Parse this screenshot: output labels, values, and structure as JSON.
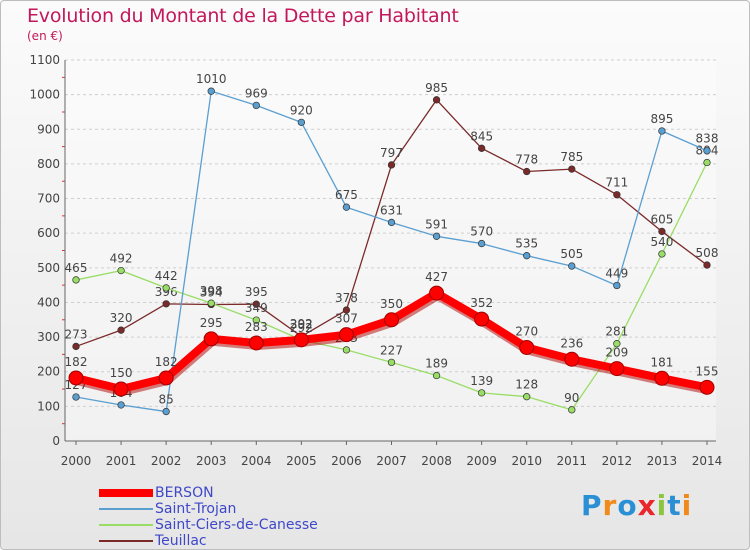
{
  "header": {
    "title": "Evolution du Montant de la Dette par Habitant",
    "unit": "(en €)"
  },
  "logo": {
    "text": "Proxiti",
    "colors": [
      "#2b8fd6",
      "#f08a1c",
      "#2b8fd6",
      "#e8262b",
      "#8cc63f",
      "#2b8fd6",
      "#f08a1c"
    ]
  },
  "chart_data": {
    "type": "line",
    "title": "Evolution du Montant de la Dette par Habitant",
    "ylabel": "(en €)",
    "xlabel": "",
    "x": [
      "2000",
      "2001",
      "2002",
      "2003",
      "2004",
      "2005",
      "2006",
      "2007",
      "2008",
      "2009",
      "2010",
      "2011",
      "2012",
      "2013",
      "2014"
    ],
    "ylim": [
      0,
      1100
    ],
    "yticks": [
      0,
      100,
      200,
      300,
      400,
      500,
      600,
      700,
      800,
      900,
      1000,
      1100
    ],
    "grid": true,
    "legend_position": "bottom-left",
    "series": [
      {
        "name": "Teuillac",
        "color": "#7b2a2a",
        "values": [
          273,
          320,
          396,
          394,
          395,
          302,
          378,
          797,
          985,
          845,
          778,
          785,
          711,
          605,
          508
        ]
      },
      {
        "name": "Saint-Ciers-de-Canesse",
        "color": "#99dd66",
        "values": [
          465,
          492,
          442,
          398,
          349,
          292,
          263,
          227,
          189,
          139,
          128,
          90,
          281,
          540,
          804
        ]
      },
      {
        "name": "Saint-Trojan",
        "color": "#5b9fd1",
        "values": [
          127,
          104,
          85,
          1010,
          969,
          920,
          675,
          631,
          591,
          570,
          535,
          505,
          449,
          895,
          838
        ]
      },
      {
        "name": "BERSON",
        "color": "#ff0000",
        "values": [
          182,
          150,
          182,
          295,
          283,
          292,
          307,
          350,
          427,
          352,
          270,
          236,
          209,
          181,
          155
        ]
      }
    ],
    "legend_order": [
      "BERSON",
      "Saint-Trojan",
      "Saint-Ciers-de-Canesse",
      "Teuillac"
    ]
  }
}
